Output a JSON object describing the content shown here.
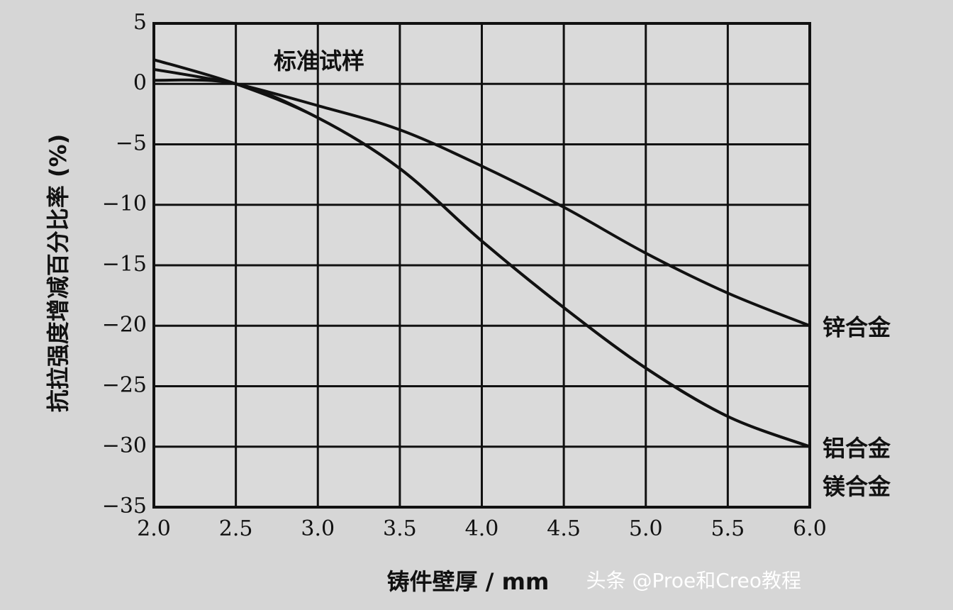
{
  "chart_data": {
    "type": "line",
    "title": "标准试样",
    "x_label": "铸件壁厚 / mm",
    "y_label": "抗拉强度增减百分比率 (%)",
    "watermark": "头条 @Proe和Creo教程",
    "x": [
      2.0,
      2.5,
      3.0,
      3.5,
      4.0,
      4.5,
      5.0,
      5.5,
      6.0
    ],
    "series": [
      {
        "name": "锌合金",
        "color": "#111111",
        "values": [
          1.2,
          0,
          -1.8,
          -3.8,
          -6.8,
          -10.2,
          -14,
          -17.3,
          -20
        ]
      },
      {
        "name": "铝合金",
        "color": "#111111",
        "values": [
          2,
          0,
          -2.8,
          -7,
          -13,
          -18.5,
          -23.5,
          -27.5,
          -30
        ]
      },
      {
        "name": "镁合金",
        "color": "#111111",
        "values": [
          0.3,
          0,
          -2.8,
          -7,
          -13,
          -18.5,
          -23.5,
          -27.5,
          -30
        ]
      }
    ],
    "xlim": [
      2,
      6
    ],
    "ylim": [
      -35,
      5
    ],
    "xticks": [
      {
        "value": 2,
        "label": "2.0"
      },
      {
        "value": 2.5,
        "label": "2.5"
      },
      {
        "value": 3,
        "label": "3.0"
      },
      {
        "value": 3.5,
        "label": "3.5"
      },
      {
        "value": 4,
        "label": "4.0"
      },
      {
        "value": 4.5,
        "label": "4.5"
      },
      {
        "value": 5,
        "label": "5.0"
      },
      {
        "value": 5.5,
        "label": "5.5"
      },
      {
        "value": 6,
        "label": "6.0"
      }
    ],
    "yticks": [
      5,
      0,
      {
        "value": -5,
        "label": "−5"
      },
      {
        "value": -10,
        "label": "−10"
      },
      {
        "value": -15,
        "label": "−15"
      },
      {
        "value": -20,
        "label": "−20"
      },
      {
        "value": -25,
        "label": "−25"
      },
      {
        "value": -30,
        "label": "−30"
      },
      {
        "value": -35,
        "label": "−35"
      }
    ],
    "grid": true
  }
}
